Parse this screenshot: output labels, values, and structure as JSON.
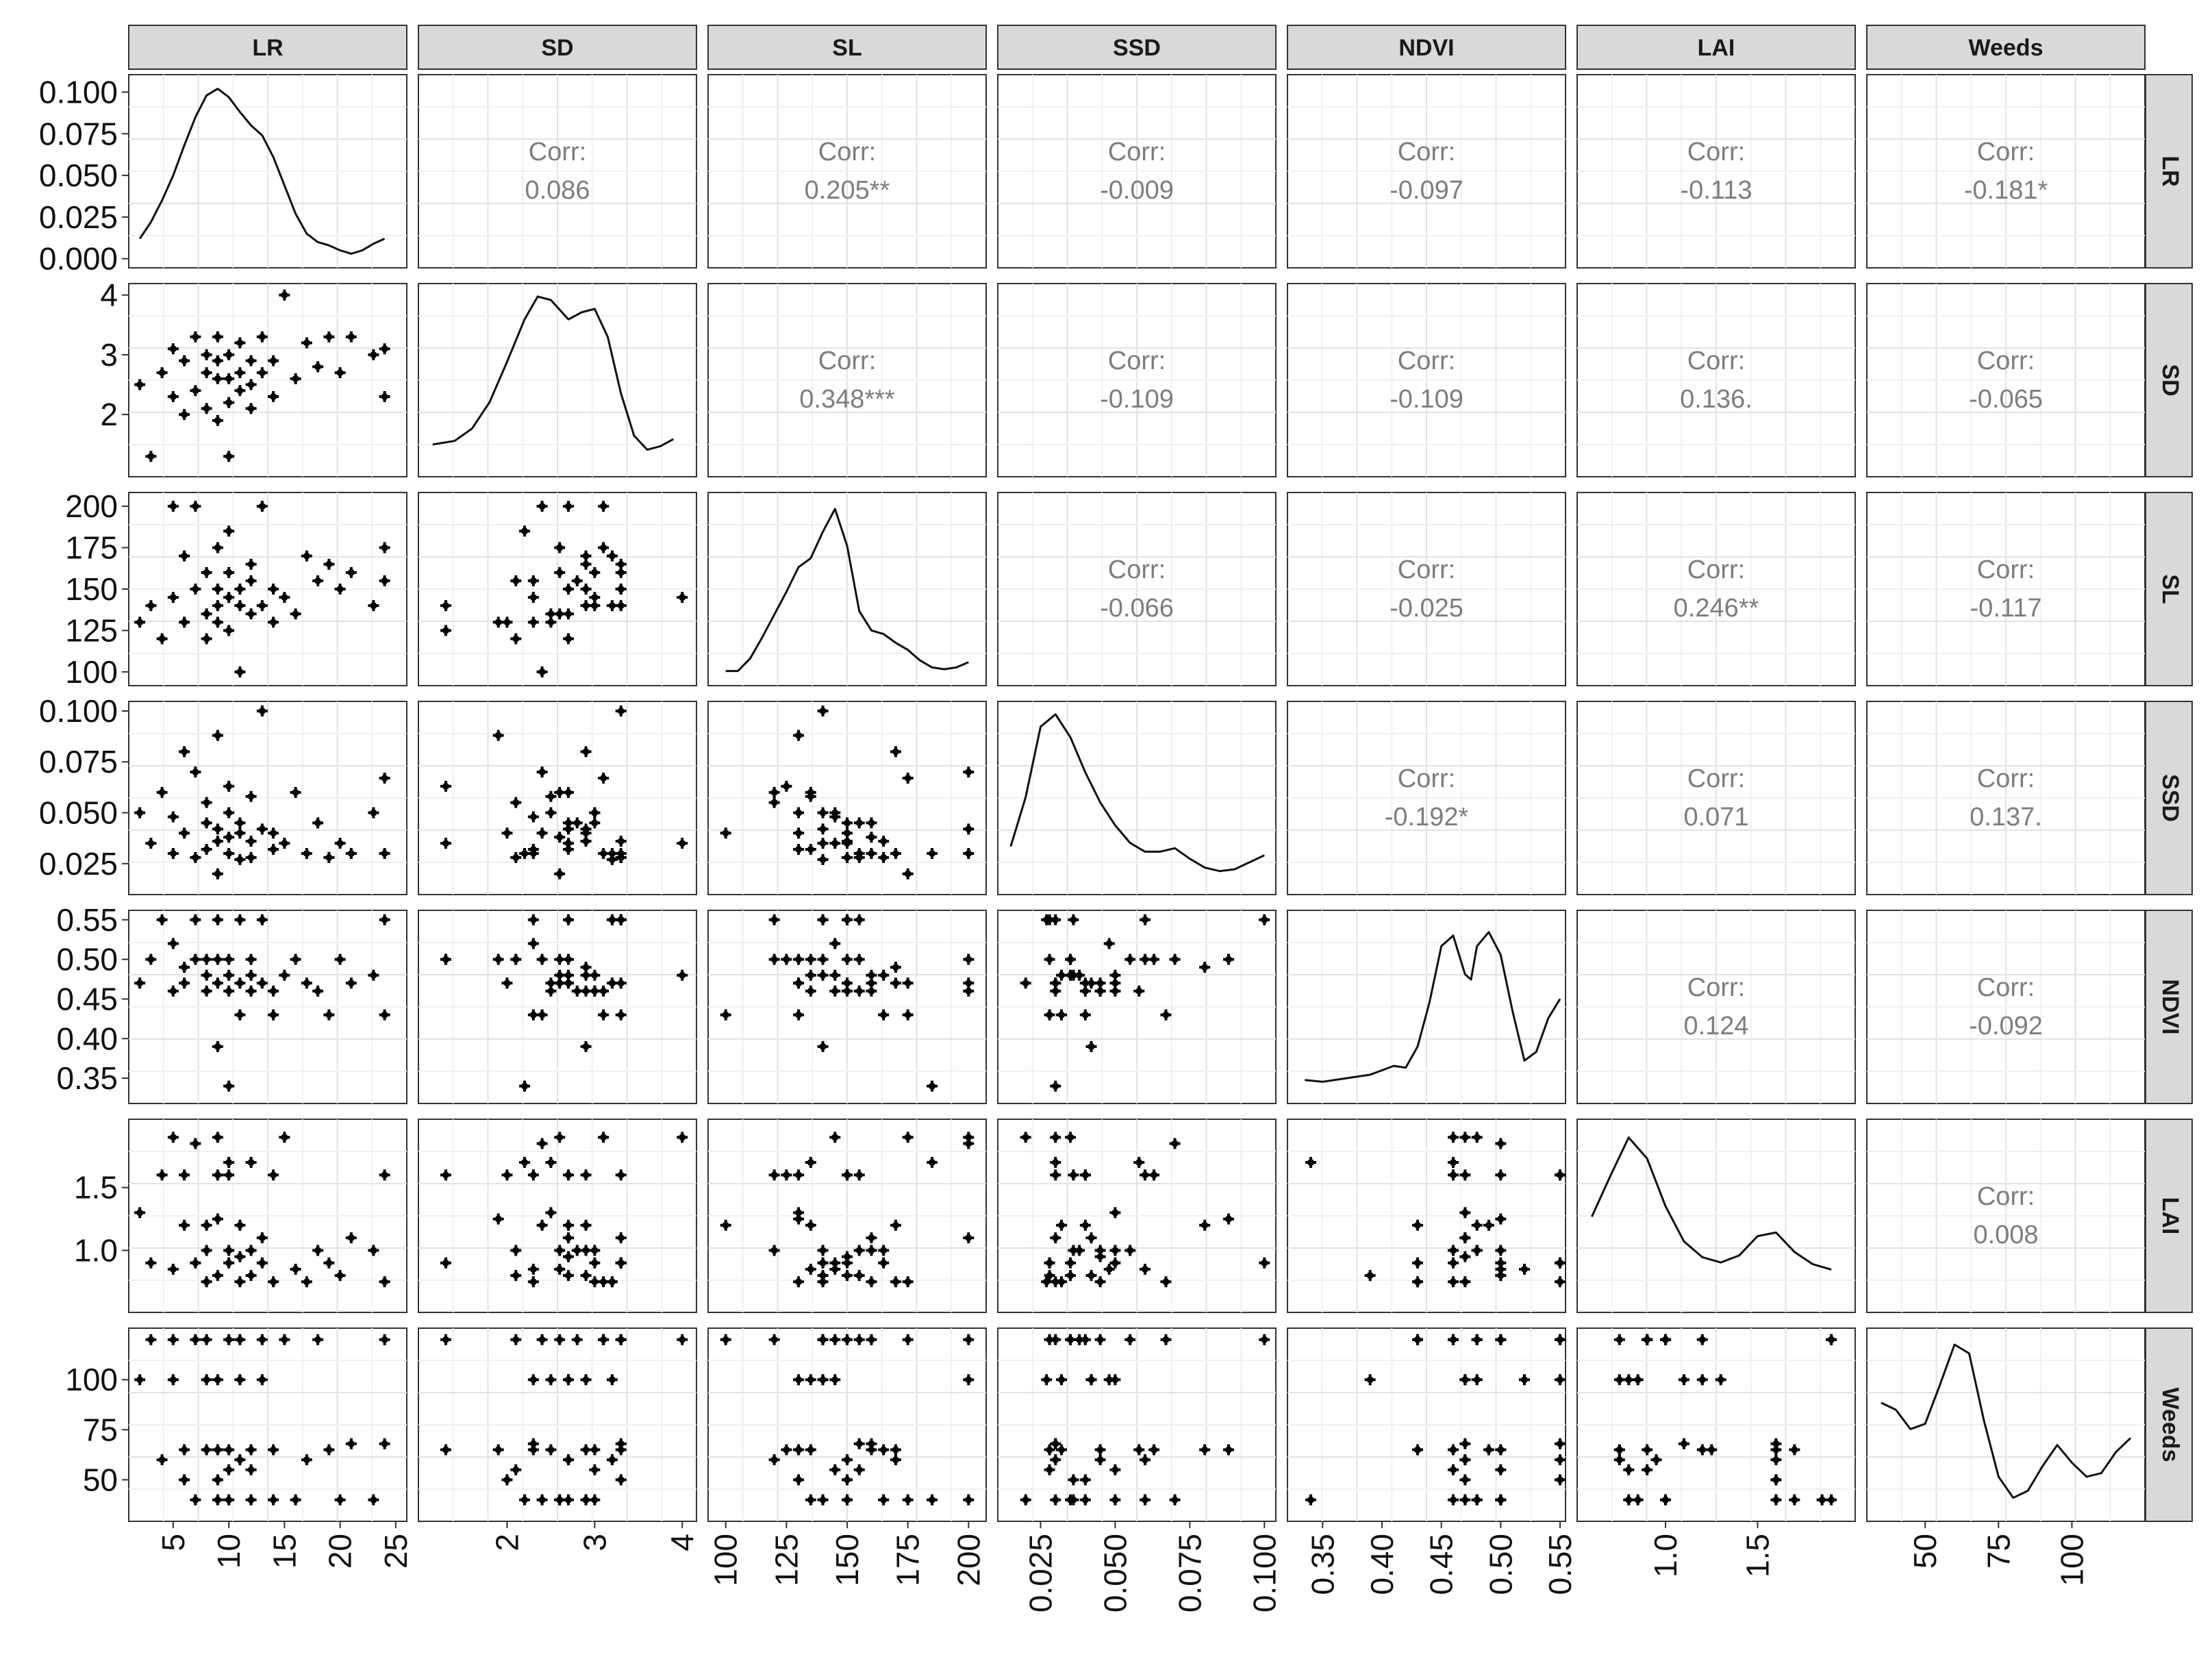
{
  "chart_data": {
    "type": "scatter",
    "variables": [
      "LR",
      "SD",
      "SL",
      "SSD",
      "NDVI",
      "LAI",
      "Weeds"
    ],
    "correlation_label": "Corr:",
    "correlations": [
      {
        "row": "LR",
        "col": "SD",
        "value": "0.086"
      },
      {
        "row": "LR",
        "col": "SL",
        "value": "0.205**"
      },
      {
        "row": "LR",
        "col": "SSD",
        "value": "-0.009"
      },
      {
        "row": "LR",
        "col": "NDVI",
        "value": "-0.097"
      },
      {
        "row": "LR",
        "col": "LAI",
        "value": "-0.113"
      },
      {
        "row": "LR",
        "col": "Weeds",
        "value": "-0.181*"
      },
      {
        "row": "SD",
        "col": "SL",
        "value": "0.348***"
      },
      {
        "row": "SD",
        "col": "SSD",
        "value": "-0.109"
      },
      {
        "row": "SD",
        "col": "NDVI",
        "value": "-0.109"
      },
      {
        "row": "SD",
        "col": "LAI",
        "value": "0.136."
      },
      {
        "row": "SD",
        "col": "Weeds",
        "value": "-0.065"
      },
      {
        "row": "SL",
        "col": "SSD",
        "value": "-0.066"
      },
      {
        "row": "SL",
        "col": "NDVI",
        "value": "-0.025"
      },
      {
        "row": "SL",
        "col": "LAI",
        "value": "0.246**"
      },
      {
        "row": "SL",
        "col": "Weeds",
        "value": "-0.117"
      },
      {
        "row": "SSD",
        "col": "NDVI",
        "value": "-0.192*"
      },
      {
        "row": "SSD",
        "col": "LAI",
        "value": "0.071"
      },
      {
        "row": "SSD",
        "col": "Weeds",
        "value": "0.137."
      },
      {
        "row": "NDVI",
        "col": "LAI",
        "value": "0.124"
      },
      {
        "row": "NDVI",
        "col": "Weeds",
        "value": "-0.092"
      },
      {
        "row": "LAI",
        "col": "Weeds",
        "value": "0.008"
      }
    ],
    "x_axes": [
      {
        "var": "LR",
        "range": [
          1.5,
          25.5
        ],
        "ticks": [
          5,
          10,
          15,
          20,
          25
        ],
        "tick_labels": [
          "5",
          "10",
          "15",
          "20",
          "25"
        ]
      },
      {
        "var": "SD",
        "range": [
          1.05,
          4.1
        ],
        "ticks": [
          2,
          3,
          4
        ],
        "tick_labels": [
          "2",
          "3",
          "4"
        ]
      },
      {
        "var": "SL",
        "range": [
          95,
          205
        ],
        "ticks": [
          100,
          125,
          150,
          175,
          200
        ],
        "tick_labels": [
          "100",
          "125",
          "150",
          "175",
          "200"
        ]
      },
      {
        "var": "SSD",
        "range": [
          0.0125,
          0.102
        ],
        "ticks": [
          0.025,
          0.05,
          0.075,
          0.1
        ],
        "tick_labels": [
          "0.025",
          "0.050",
          "0.075",
          "0.100"
        ]
      },
      {
        "var": "NDVI",
        "range": [
          0.325,
          0.55
        ],
        "ticks": [
          0.35,
          0.4,
          0.45,
          0.5,
          0.55
        ],
        "tick_labels": [
          "0.35",
          "0.40",
          "0.45",
          "0.50",
          "0.55"
        ]
      },
      {
        "var": "LAI",
        "range": [
          0.55,
          2.0
        ],
        "ticks": [
          1.0,
          1.5
        ],
        "tick_labels": [
          "1.0",
          "1.5"
        ]
      },
      {
        "var": "Weeds",
        "range": [
          32,
          123
        ],
        "ticks": [
          50,
          75,
          100
        ],
        "tick_labels": [
          "50",
          "75",
          "100"
        ]
      }
    ],
    "y_axes": [
      {
        "var": "LR",
        "range": [
          -0.003,
          0.108
        ],
        "ticks": [
          0,
          0.025,
          0.05,
          0.075,
          0.1
        ],
        "tick_labels": [
          "0.000",
          "0.025",
          "0.050",
          "0.075",
          "0.100"
        ]
      },
      {
        "var": "SD",
        "range": [
          1.05,
          4.1
        ],
        "ticks": [
          2,
          3,
          4
        ],
        "tick_labels": [
          "2",
          "3",
          "4"
        ]
      },
      {
        "var": "SL",
        "range": [
          95,
          205
        ],
        "ticks": [
          100,
          125,
          150,
          175,
          200
        ],
        "tick_labels": [
          "100",
          "125",
          "150",
          "175",
          "200"
        ]
      },
      {
        "var": "SSD",
        "range": [
          0.0125,
          0.102
        ],
        "ticks": [
          0.025,
          0.05,
          0.075,
          0.1
        ],
        "tick_labels": [
          "0.025",
          "0.050",
          "0.075",
          "0.100"
        ]
      },
      {
        "var": "NDVI",
        "range": [
          0.325,
          0.555
        ],
        "ticks": [
          0.35,
          0.4,
          0.45,
          0.5,
          0.55
        ],
        "tick_labels": [
          "0.35",
          "0.40",
          "0.45",
          "0.50",
          "0.55"
        ]
      },
      {
        "var": "LAI",
        "range": [
          0.55,
          2.0
        ],
        "ticks": [
          1.0,
          1.5
        ],
        "tick_labels": [
          "1.0",
          "1.5"
        ]
      },
      {
        "var": "Weeds",
        "range": [
          32,
          123
        ],
        "ticks": [
          50,
          75,
          100
        ],
        "tick_labels": [
          "50",
          "75",
          "100"
        ]
      }
    ],
    "densities": [
      {
        "var": "LR",
        "x": [
          2,
          3,
          4,
          5,
          6,
          7,
          8,
          9,
          10,
          11,
          12,
          13,
          14,
          15,
          16,
          17,
          18,
          19,
          20,
          21,
          22,
          23,
          24
        ],
        "y": [
          0.012,
          0.022,
          0.035,
          0.05,
          0.068,
          0.085,
          0.098,
          0.102,
          0.097,
          0.088,
          0.08,
          0.074,
          0.061,
          0.044,
          0.027,
          0.015,
          0.01,
          0.008,
          0.005,
          0.003,
          0.005,
          0.009,
          0.012
        ]
      },
      {
        "var": "SD",
        "x": [
          1.15,
          1.4,
          1.6,
          1.8,
          2.0,
          2.2,
          2.35,
          2.5,
          2.7,
          2.85,
          3.0,
          3.15,
          3.3,
          3.45,
          3.6,
          3.75,
          3.9
        ],
        "y": [
          0.11,
          0.13,
          0.2,
          0.35,
          0.58,
          0.82,
          0.95,
          0.93,
          0.82,
          0.86,
          0.88,
          0.72,
          0.4,
          0.16,
          0.08,
          0.1,
          0.14
        ]
      },
      {
        "var": "SL",
        "x": [
          100,
          105,
          110,
          115,
          120,
          125,
          130,
          135,
          140,
          145,
          150,
          155,
          160,
          165,
          170,
          175,
          180,
          185,
          190,
          195,
          200
        ],
        "y": [
          0.01,
          0.01,
          0.08,
          0.2,
          0.33,
          0.46,
          0.6,
          0.65,
          0.8,
          0.93,
          0.72,
          0.35,
          0.24,
          0.22,
          0.17,
          0.13,
          0.07,
          0.03,
          0.02,
          0.03,
          0.06
        ]
      },
      {
        "var": "SSD",
        "x": [
          0.015,
          0.02,
          0.025,
          0.03,
          0.035,
          0.04,
          0.045,
          0.05,
          0.055,
          0.06,
          0.065,
          0.07,
          0.075,
          0.08,
          0.085,
          0.09,
          0.095,
          0.1
        ],
        "y": [
          0.2,
          0.48,
          0.88,
          0.95,
          0.82,
          0.62,
          0.45,
          0.32,
          0.22,
          0.17,
          0.17,
          0.19,
          0.13,
          0.08,
          0.06,
          0.07,
          0.11,
          0.15
        ]
      },
      {
        "var": "NDVI",
        "x": [
          0.335,
          0.35,
          0.37,
          0.39,
          0.41,
          0.42,
          0.43,
          0.44,
          0.45,
          0.46,
          0.47,
          0.475,
          0.48,
          0.49,
          0.5,
          0.51,
          0.52,
          0.53,
          0.54,
          0.55
        ],
        "y": [
          0.06,
          0.05,
          0.07,
          0.09,
          0.14,
          0.13,
          0.25,
          0.5,
          0.82,
          0.88,
          0.66,
          0.63,
          0.82,
          0.9,
          0.77,
          0.45,
          0.17,
          0.22,
          0.41,
          0.52
        ]
      },
      {
        "var": "LAI",
        "x": [
          0.6,
          0.7,
          0.8,
          0.9,
          1.0,
          1.1,
          1.2,
          1.3,
          1.4,
          1.5,
          1.6,
          1.7,
          1.8,
          1.9
        ],
        "y": [
          0.47,
          0.7,
          0.92,
          0.8,
          0.53,
          0.33,
          0.24,
          0.21,
          0.25,
          0.36,
          0.38,
          0.27,
          0.2,
          0.17
        ]
      },
      {
        "var": "Weeds",
        "x": [
          35,
          40,
          45,
          50,
          55,
          60,
          65,
          70,
          75,
          80,
          85,
          90,
          95,
          100,
          105,
          110,
          115,
          120
        ],
        "y": [
          0.6,
          0.56,
          0.45,
          0.48,
          0.7,
          0.93,
          0.88,
          0.5,
          0.18,
          0.06,
          0.1,
          0.24,
          0.36,
          0.26,
          0.18,
          0.2,
          0.32,
          0.4
        ]
      }
    ],
    "points": {
      "LR": [
        2,
        3,
        4,
        5,
        5,
        6,
        6,
        7,
        7,
        8,
        8,
        8,
        9,
        9,
        9,
        9,
        10,
        10,
        10,
        10,
        11,
        11,
        11,
        12,
        12,
        12,
        13,
        13,
        14,
        14,
        15,
        16,
        17,
        18,
        19,
        20,
        21,
        23,
        24,
        24
      ],
      "SD": [
        2.5,
        1.3,
        2.7,
        3.1,
        2.3,
        2.9,
        2.0,
        3.3,
        2.4,
        2.7,
        3.0,
        2.1,
        3.3,
        2.6,
        2.9,
        1.9,
        2.6,
        3.0,
        2.2,
        1.3,
        2.7,
        3.2,
        2.4,
        2.9,
        2.5,
        2.1,
        3.3,
        2.7,
        2.9,
        2.3,
        4.0,
        2.6,
        3.2,
        2.8,
        3.3,
        2.7,
        3.3,
        3.0,
        3.1,
        2.3
      ],
      "SL": [
        130,
        140,
        120,
        200,
        145,
        170,
        130,
        150,
        200,
        135,
        160,
        120,
        150,
        175,
        140,
        130,
        160,
        145,
        185,
        125,
        150,
        140,
        100,
        165,
        135,
        155,
        140,
        200,
        150,
        130,
        145,
        135,
        170,
        155,
        165,
        150,
        160,
        140,
        175,
        155
      ],
      "SSD": [
        0.05,
        0.035,
        0.06,
        0.03,
        0.048,
        0.08,
        0.04,
        0.028,
        0.07,
        0.032,
        0.045,
        0.055,
        0.036,
        0.02,
        0.042,
        0.088,
        0.038,
        0.05,
        0.03,
        0.063,
        0.045,
        0.027,
        0.04,
        0.036,
        0.058,
        0.028,
        0.1,
        0.042,
        0.04,
        0.032,
        0.035,
        0.06,
        0.03,
        0.045,
        0.028,
        0.035,
        0.03,
        0.05,
        0.067,
        0.03
      ],
      "NDVI": [
        0.47,
        0.5,
        0.55,
        0.46,
        0.52,
        0.49,
        0.47,
        0.55,
        0.5,
        0.48,
        0.46,
        0.5,
        0.55,
        0.47,
        0.39,
        0.5,
        0.48,
        0.46,
        0.34,
        0.5,
        0.47,
        0.55,
        0.43,
        0.48,
        0.46,
        0.5,
        0.55,
        0.47,
        0.46,
        0.43,
        0.48,
        0.5,
        0.47,
        0.46,
        0.43,
        0.5,
        0.47,
        0.48,
        0.43,
        0.55
      ],
      "LAI": [
        1.3,
        0.9,
        1.6,
        1.9,
        0.85,
        1.2,
        1.6,
        0.9,
        1.85,
        1.2,
        0.75,
        1.0,
        1.6,
        1.9,
        0.8,
        1.25,
        1.0,
        0.9,
        1.7,
        1.6,
        0.95,
        0.75,
        1.2,
        1.0,
        1.7,
        0.8,
        0.9,
        1.1,
        1.6,
        0.75,
        1.9,
        0.85,
        0.75,
        1.0,
        0.9,
        0.8,
        1.1,
        1.0,
        0.75,
        1.6
      ],
      "Weeds": [
        100,
        120,
        60,
        120,
        100,
        65,
        50,
        120,
        40,
        100,
        65,
        120,
        50,
        40,
        100,
        65,
        120,
        55,
        40,
        65,
        60,
        100,
        120,
        40,
        65,
        55,
        120,
        100,
        40,
        65,
        120,
        40,
        60,
        120,
        65,
        40,
        68,
        40,
        120,
        68
      ]
    }
  }
}
